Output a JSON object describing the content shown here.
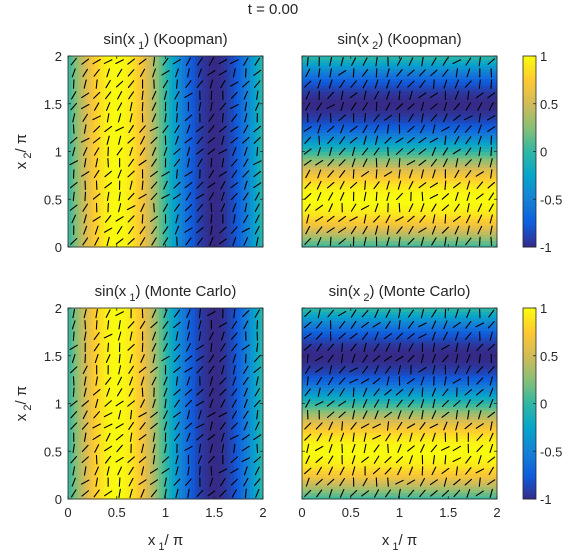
{
  "figure_title": "t = 0.00",
  "colors": {
    "parula": [
      "#352a87",
      "#0f5cdd",
      "#1481d6",
      "#06a4ca",
      "#2eb7a4",
      "#87bf77",
      "#d1bb59",
      "#fec832",
      "#f9fb0e"
    ],
    "arrow": "#000000",
    "axis": "#262626"
  },
  "chart_data": [
    {
      "type": "heatmap",
      "id": "top-left",
      "title_main": "sin(x",
      "title_sub": "1",
      "title_suffix": ") (Koopman)",
      "field": "sin(x1)",
      "xlim": [
        0,
        2
      ],
      "ylim": [
        0,
        2
      ],
      "xticks": [
        "0",
        "0.5",
        "1",
        "1.5",
        "2"
      ],
      "yticks": [
        "0",
        "0.5",
        "1",
        "1.5",
        "2"
      ],
      "show_xticklabels": false,
      "show_yticklabels": true,
      "xlabel": "",
      "ylabel_main": "x",
      "ylabel_sub": "2",
      "ylabel_suffix": "/ π",
      "clim": [
        -1,
        1
      ],
      "colorbar": false,
      "quiver": true
    },
    {
      "type": "heatmap",
      "id": "top-right",
      "title_main": "sin(x",
      "title_sub": "2",
      "title_suffix": ") (Koopman)",
      "field": "sin(x2)",
      "xlim": [
        0,
        2
      ],
      "ylim": [
        0,
        2
      ],
      "xticks": [
        "0",
        "0.5",
        "1",
        "1.5",
        "2"
      ],
      "yticks": [
        "0",
        "0.5",
        "1",
        "1.5",
        "2"
      ],
      "show_xticklabels": false,
      "show_yticklabels": false,
      "xlabel": "",
      "ylabel_main": "",
      "ylabel_sub": "",
      "ylabel_suffix": "",
      "clim": [
        -1,
        1
      ],
      "colorbar": true,
      "colorbar_ticks": [
        "-1",
        "-0.5",
        "0",
        "0.5",
        "1"
      ],
      "quiver": true
    },
    {
      "type": "heatmap",
      "id": "bottom-left",
      "title_main": "sin(x",
      "title_sub": "1",
      "title_suffix": ") (Monte Carlo)",
      "field": "sin(x1)",
      "xlim": [
        0,
        2
      ],
      "ylim": [
        0,
        2
      ],
      "xticks": [
        "0",
        "0.5",
        "1",
        "1.5",
        "2"
      ],
      "yticks": [
        "0",
        "0.5",
        "1",
        "1.5",
        "2"
      ],
      "show_xticklabels": true,
      "show_yticklabels": true,
      "xlabel_main": "x",
      "xlabel_sub": "1",
      "xlabel_suffix": "/ π",
      "ylabel_main": "x",
      "ylabel_sub": "2",
      "ylabel_suffix": "/ π",
      "clim": [
        -1,
        1
      ],
      "colorbar": false,
      "quiver": true
    },
    {
      "type": "heatmap",
      "id": "bottom-right",
      "title_main": "sin(x",
      "title_sub": "2",
      "title_suffix": ") (Monte Carlo)",
      "field": "sin(x2)",
      "xlim": [
        0,
        2
      ],
      "ylim": [
        0,
        2
      ],
      "xticks": [
        "0",
        "0.5",
        "1",
        "1.5",
        "2"
      ],
      "yticks": [
        "0",
        "0.5",
        "1",
        "1.5",
        "2"
      ],
      "show_xticklabels": true,
      "show_yticklabels": false,
      "xlabel_main": "x",
      "xlabel_sub": "1",
      "xlabel_suffix": "/ π",
      "ylabel_main": "",
      "ylabel_sub": "",
      "ylabel_suffix": "",
      "clim": [
        -1,
        1
      ],
      "colorbar": true,
      "colorbar_ticks": [
        "-1",
        "-0.5",
        "0",
        "0.5",
        "1"
      ],
      "quiver": true
    }
  ]
}
